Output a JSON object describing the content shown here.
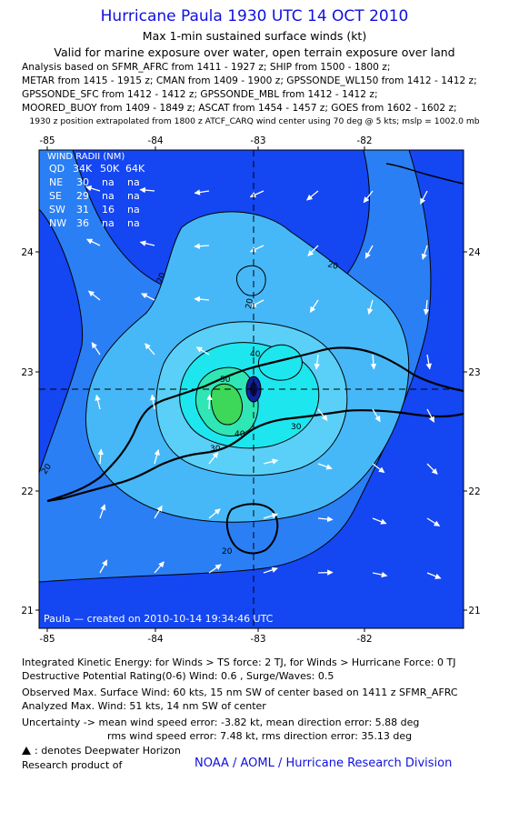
{
  "header": {
    "title": "Hurricane Paula 1930 UTC 14 OCT 2010",
    "subtitle": "Max 1-min sustained surface winds (kt)",
    "validity": "Valid for marine exposure over water, open terrain exposure over land",
    "analysis_lines": [
      "Analysis based on SFMR_AFRC from 1411 - 1927 z; SHIP from 1500 - 1800 z;",
      "METAR from 1415 - 1915 z; CMAN from 1409 - 1900 z; GPSSONDE_WL150 from 1412 - 1412 z;",
      "GPSSONDE_SFC from 1412 - 1412 z; GPSSONDE_MBL from 1412 - 1412 z;",
      "MOORED_BUOY from 1409 - 1849 z; ASCAT from 1454 - 1457 z; GOES from 1602 - 1602 z;"
    ],
    "position_note": "1930 z position extrapolated from 1800 z ATCF_CARQ wind center using 70 deg @ 5 kts; mslp = 1002.0 mb"
  },
  "map": {
    "lon_ticks": [
      "-85",
      "-84",
      "-83",
      "-82"
    ],
    "lat_ticks": [
      "24",
      "23",
      "22",
      "21"
    ],
    "center": {
      "lon": -83.0,
      "lat": 22.85
    },
    "contour_labels": [
      "20",
      "20",
      "20",
      "20",
      "20",
      "30",
      "30",
      "40",
      "40",
      "50"
    ],
    "credit_line": "Paula  —  created on 2010-10-14  19:34:46 UTC",
    "colors": {
      "ocean_deep": "#1446f2",
      "level20": "#2a7ff5",
      "level30": "#46b8f7",
      "level40": "#1ee6ee",
      "level50": "#2fe6b4",
      "level60": "#3dd85a",
      "center": "#1020a0"
    }
  },
  "wind_radii": {
    "title": "WIND RADII (NM)",
    "columns": [
      "QD",
      "34K",
      "50K",
      "64K"
    ],
    "rows": [
      [
        "NE",
        "30",
        "na",
        "na"
      ],
      [
        "SE",
        "29",
        "na",
        "na"
      ],
      [
        "SW",
        "31",
        "16",
        "na"
      ],
      [
        "NW",
        "36",
        "na",
        "na"
      ]
    ]
  },
  "footer": {
    "ike": "Integrated Kinetic Energy:  for Winds > TS force: 2 TJ,  for Winds > Hurricane Force: 0 TJ",
    "dpr": "Destructive Potential Rating(0-6)   Wind: 0.6 , Surge/Waves: 0.5",
    "observed": "Observed Max. Surface Wind: 60 kts, 15 nm SW of center based on 1411 z SFMR_AFRC",
    "analyzed": "Analyzed Max. Wind: 51 kts, 14 nm SW of center",
    "uncertainty1": "Uncertainty -> mean wind speed error:  -3.82 kt,   mean direction error: 5.88 deg",
    "uncertainty2": "rms wind speed error: 7.48 kt,   rms direction error: 35.13 deg",
    "deepwater": ": denotes Deepwater Horizon",
    "research": "Research product of",
    "credit": "NOAA / AOML / Hurricane Research Division"
  }
}
